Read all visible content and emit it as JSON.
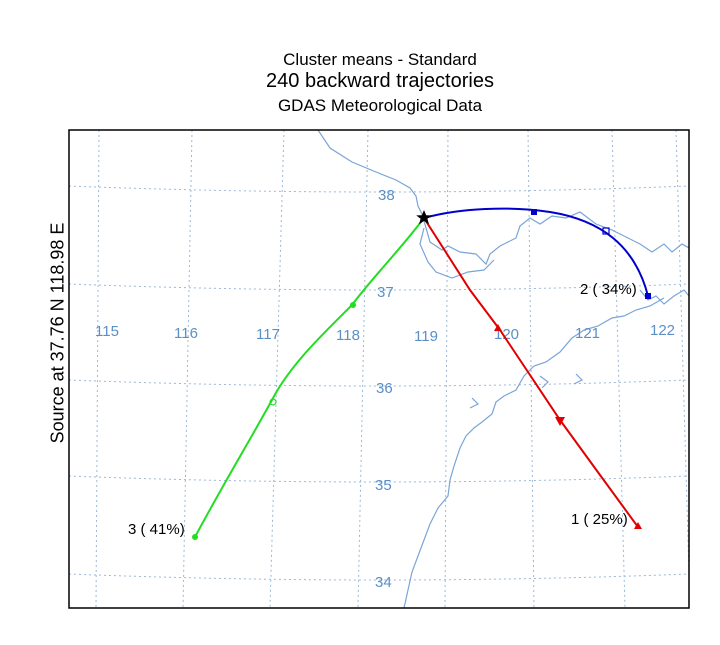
{
  "titles": {
    "line1": "Cluster means - Standard",
    "line2": "240 backward trajectories",
    "line3": "GDAS Meteorological Data"
  },
  "source_label": "Source       at    37.76 N   118.98 E",
  "grid": {
    "lon_labels": [
      "115",
      "116",
      "117",
      "118",
      "119",
      "120",
      "121",
      "122"
    ],
    "lat_labels": [
      "38",
      "37",
      "36",
      "35",
      "34"
    ]
  },
  "clusters": [
    {
      "label": "1 ( 25%)",
      "color": "#e00000",
      "marker": "triangle"
    },
    {
      "label": "2 ( 34%)",
      "color": "#0000cc",
      "marker": "square"
    },
    {
      "label": "3 ( 41%)",
      "color": "#22dd22",
      "marker": "circle"
    }
  ],
  "colors": {
    "coastline": "#7aa5d6",
    "grid": "#9bb8d8",
    "grid_label": "#5b8fc6"
  }
}
